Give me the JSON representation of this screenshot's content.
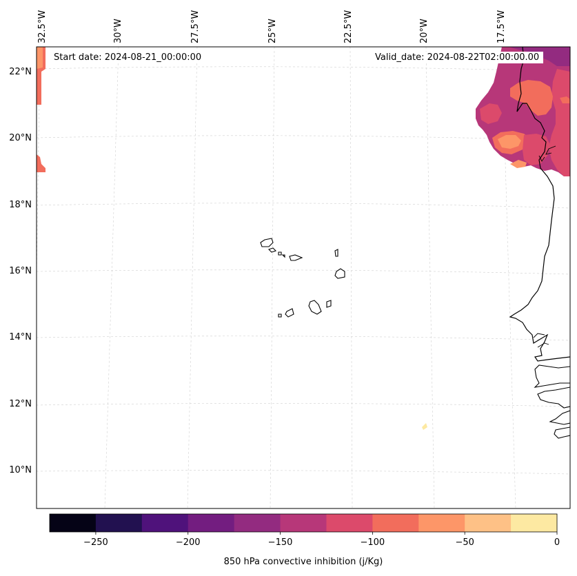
{
  "header": {
    "start_date": "Start date: 2024-08-21_00:00:00",
    "valid_date": "Valid_date: 2024-08-22T02:00:00.00"
  },
  "map": {
    "longitude_labels": [
      "32.5°W",
      "30°W",
      "27.5°W",
      "25°W",
      "22.5°W",
      "20°W",
      "17.5°W"
    ],
    "latitude_labels": [
      "22°N",
      "20°N",
      "18°N",
      "16°N",
      "14°N",
      "12°N",
      "10°N"
    ],
    "features": [
      "Cape Verde islands",
      "West African coastline"
    ]
  },
  "chart_data": {
    "type": "heatmap",
    "variable": "850 hPa convective inhibition (j/Kg)",
    "colorbar": {
      "label": "850 hPa convective inhibition (j/Kg)",
      "range": [
        -275,
        0
      ],
      "ticks": [
        -250,
        -200,
        -150,
        -100,
        -50,
        0
      ],
      "tick_labels": [
        "−250",
        "−200",
        "−150",
        "−100",
        "−50",
        "0"
      ],
      "levels": [
        -275,
        -250,
        -225,
        -200,
        -175,
        -150,
        -125,
        -100,
        -75,
        -50,
        -25,
        0
      ],
      "colors": [
        "#050316",
        "#221150",
        "#4f127b",
        "#731d80",
        "#932b80",
        "#b73779",
        "#dc4a6b",
        "#f26d5c",
        "#fd9668",
        "#fec186",
        "#fde9a2"
      ]
    },
    "extent": {
      "lon": [
        -32.5,
        -16.0
      ],
      "lat": [
        9.0,
        22.8
      ]
    }
  }
}
